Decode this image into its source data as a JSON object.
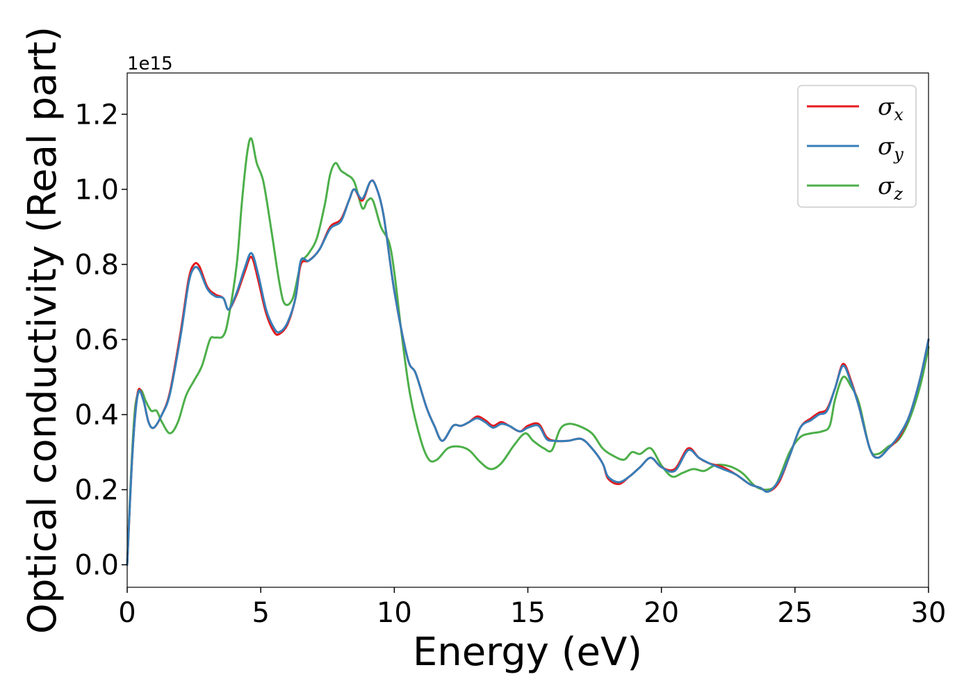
{
  "chart_data": {
    "type": "line",
    "xlabel": "Energy (eV)",
    "ylabel": "Optical conductivity (Real part)",
    "y_offset_label": "1e15",
    "xlim": [
      0,
      30
    ],
    "ylim": [
      -0.06,
      1.31
    ],
    "x_ticks": [
      0,
      5,
      10,
      15,
      20,
      25,
      30
    ],
    "x_tick_labels": [
      "0",
      "5",
      "10",
      "15",
      "20",
      "25",
      "30"
    ],
    "y_ticks": [
      0.0,
      0.2,
      0.4,
      0.6,
      0.8,
      1.0,
      1.2
    ],
    "y_tick_labels": [
      "0.0",
      "0.2",
      "0.4",
      "0.6",
      "0.8",
      "1.0",
      "1.2"
    ],
    "grid": false,
    "legend_position": "top-right",
    "series": [
      {
        "name": "σ_x",
        "legend_symbol": "σ",
        "legend_subscript": "x",
        "color": "#e41a1c",
        "points": [
          [
            0,
            0.0
          ],
          [
            0.2,
            0.3
          ],
          [
            0.4,
            0.46
          ],
          [
            0.6,
            0.44
          ],
          [
            0.8,
            0.38
          ],
          [
            1.0,
            0.365
          ],
          [
            1.3,
            0.4
          ],
          [
            1.6,
            0.46
          ],
          [
            2.0,
            0.62
          ],
          [
            2.3,
            0.76
          ],
          [
            2.5,
            0.8
          ],
          [
            2.7,
            0.795
          ],
          [
            3.0,
            0.74
          ],
          [
            3.3,
            0.72
          ],
          [
            3.6,
            0.71
          ],
          [
            3.8,
            0.68
          ],
          [
            4.1,
            0.72
          ],
          [
            4.4,
            0.78
          ],
          [
            4.65,
            0.82
          ],
          [
            4.9,
            0.76
          ],
          [
            5.2,
            0.67
          ],
          [
            5.5,
            0.62
          ],
          [
            5.7,
            0.615
          ],
          [
            6.0,
            0.64
          ],
          [
            6.3,
            0.71
          ],
          [
            6.5,
            0.8
          ],
          [
            6.8,
            0.81
          ],
          [
            7.2,
            0.84
          ],
          [
            7.6,
            0.9
          ],
          [
            8.0,
            0.92
          ],
          [
            8.3,
            0.97
          ],
          [
            8.5,
            1.0
          ],
          [
            8.8,
            0.97
          ],
          [
            9.1,
            1.02
          ],
          [
            9.3,
            1.01
          ],
          [
            9.6,
            0.93
          ],
          [
            10.0,
            0.73
          ],
          [
            10.5,
            0.55
          ],
          [
            10.8,
            0.51
          ],
          [
            11.2,
            0.42
          ],
          [
            11.5,
            0.37
          ],
          [
            11.8,
            0.33
          ],
          [
            12.2,
            0.37
          ],
          [
            12.5,
            0.37
          ],
          [
            12.8,
            0.38
          ],
          [
            13.1,
            0.395
          ],
          [
            13.4,
            0.385
          ],
          [
            13.7,
            0.37
          ],
          [
            14.0,
            0.38
          ],
          [
            14.3,
            0.37
          ],
          [
            14.7,
            0.355
          ],
          [
            15.0,
            0.37
          ],
          [
            15.4,
            0.375
          ],
          [
            15.7,
            0.34
          ],
          [
            16.0,
            0.33
          ],
          [
            16.5,
            0.33
          ],
          [
            17.0,
            0.335
          ],
          [
            17.4,
            0.31
          ],
          [
            17.8,
            0.27
          ],
          [
            18.0,
            0.23
          ],
          [
            18.4,
            0.215
          ],
          [
            18.8,
            0.235
          ],
          [
            19.2,
            0.26
          ],
          [
            19.6,
            0.285
          ],
          [
            20.0,
            0.26
          ],
          [
            20.5,
            0.255
          ],
          [
            21.0,
            0.31
          ],
          [
            21.4,
            0.285
          ],
          [
            21.8,
            0.27
          ],
          [
            22.3,
            0.26
          ],
          [
            22.8,
            0.24
          ],
          [
            23.3,
            0.215
          ],
          [
            23.7,
            0.205
          ],
          [
            24.0,
            0.195
          ],
          [
            24.4,
            0.22
          ],
          [
            24.8,
            0.29
          ],
          [
            25.2,
            0.365
          ],
          [
            25.6,
            0.39
          ],
          [
            25.9,
            0.405
          ],
          [
            26.2,
            0.415
          ],
          [
            26.5,
            0.47
          ],
          [
            26.8,
            0.535
          ],
          [
            27.1,
            0.49
          ],
          [
            27.4,
            0.42
          ],
          [
            27.8,
            0.31
          ],
          [
            28.1,
            0.285
          ],
          [
            28.5,
            0.31
          ],
          [
            28.9,
            0.34
          ],
          [
            29.3,
            0.4
          ],
          [
            29.7,
            0.5
          ],
          [
            30.0,
            0.6
          ]
        ]
      },
      {
        "name": "σ_y",
        "legend_symbol": "σ",
        "legend_subscript": "y",
        "color": "#377eb8",
        "points": [
          [
            0,
            0.0
          ],
          [
            0.2,
            0.3
          ],
          [
            0.4,
            0.455
          ],
          [
            0.6,
            0.44
          ],
          [
            0.8,
            0.38
          ],
          [
            1.0,
            0.365
          ],
          [
            1.3,
            0.4
          ],
          [
            1.6,
            0.455
          ],
          [
            2.0,
            0.61
          ],
          [
            2.3,
            0.75
          ],
          [
            2.5,
            0.79
          ],
          [
            2.7,
            0.785
          ],
          [
            3.0,
            0.735
          ],
          [
            3.3,
            0.715
          ],
          [
            3.6,
            0.71
          ],
          [
            3.8,
            0.68
          ],
          [
            4.1,
            0.725
          ],
          [
            4.4,
            0.79
          ],
          [
            4.65,
            0.83
          ],
          [
            4.9,
            0.775
          ],
          [
            5.2,
            0.68
          ],
          [
            5.5,
            0.63
          ],
          [
            5.7,
            0.62
          ],
          [
            6.0,
            0.645
          ],
          [
            6.3,
            0.71
          ],
          [
            6.5,
            0.81
          ],
          [
            6.8,
            0.81
          ],
          [
            7.2,
            0.84
          ],
          [
            7.6,
            0.895
          ],
          [
            8.0,
            0.915
          ],
          [
            8.3,
            0.97
          ],
          [
            8.5,
            1.0
          ],
          [
            8.8,
            0.975
          ],
          [
            9.1,
            1.02
          ],
          [
            9.3,
            1.01
          ],
          [
            9.6,
            0.93
          ],
          [
            10.0,
            0.73
          ],
          [
            10.5,
            0.55
          ],
          [
            10.8,
            0.51
          ],
          [
            11.2,
            0.42
          ],
          [
            11.5,
            0.37
          ],
          [
            11.8,
            0.33
          ],
          [
            12.2,
            0.37
          ],
          [
            12.5,
            0.37
          ],
          [
            12.8,
            0.38
          ],
          [
            13.1,
            0.39
          ],
          [
            13.4,
            0.38
          ],
          [
            13.7,
            0.365
          ],
          [
            14.0,
            0.375
          ],
          [
            14.3,
            0.37
          ],
          [
            14.7,
            0.355
          ],
          [
            15.0,
            0.365
          ],
          [
            15.4,
            0.37
          ],
          [
            15.7,
            0.335
          ],
          [
            16.0,
            0.33
          ],
          [
            16.5,
            0.33
          ],
          [
            17.0,
            0.335
          ],
          [
            17.4,
            0.31
          ],
          [
            17.8,
            0.27
          ],
          [
            18.0,
            0.235
          ],
          [
            18.4,
            0.22
          ],
          [
            18.8,
            0.235
          ],
          [
            19.2,
            0.26
          ],
          [
            19.6,
            0.285
          ],
          [
            20.0,
            0.26
          ],
          [
            20.5,
            0.25
          ],
          [
            21.0,
            0.305
          ],
          [
            21.4,
            0.285
          ],
          [
            21.8,
            0.27
          ],
          [
            22.3,
            0.255
          ],
          [
            22.8,
            0.24
          ],
          [
            23.3,
            0.215
          ],
          [
            23.7,
            0.205
          ],
          [
            24.0,
            0.195
          ],
          [
            24.4,
            0.225
          ],
          [
            24.8,
            0.29
          ],
          [
            25.2,
            0.365
          ],
          [
            25.6,
            0.385
          ],
          [
            25.9,
            0.4
          ],
          [
            26.2,
            0.41
          ],
          [
            26.5,
            0.47
          ],
          [
            26.8,
            0.53
          ],
          [
            27.1,
            0.485
          ],
          [
            27.4,
            0.42
          ],
          [
            27.8,
            0.31
          ],
          [
            28.1,
            0.285
          ],
          [
            28.5,
            0.31
          ],
          [
            28.9,
            0.345
          ],
          [
            29.3,
            0.4
          ],
          [
            29.7,
            0.5
          ],
          [
            30.0,
            0.6
          ]
        ]
      },
      {
        "name": "σ_z",
        "legend_symbol": "σ",
        "legend_subscript": "z",
        "color": "#4daf4a",
        "points": [
          [
            0,
            0.0
          ],
          [
            0.15,
            0.25
          ],
          [
            0.3,
            0.42
          ],
          [
            0.5,
            0.465
          ],
          [
            0.7,
            0.435
          ],
          [
            0.9,
            0.41
          ],
          [
            1.1,
            0.41
          ],
          [
            1.3,
            0.38
          ],
          [
            1.6,
            0.35
          ],
          [
            1.9,
            0.38
          ],
          [
            2.2,
            0.45
          ],
          [
            2.5,
            0.49
          ],
          [
            2.8,
            0.53
          ],
          [
            3.1,
            0.6
          ],
          [
            3.3,
            0.605
          ],
          [
            3.6,
            0.61
          ],
          [
            3.8,
            0.66
          ],
          [
            4.1,
            0.8
          ],
          [
            4.3,
            0.97
          ],
          [
            4.5,
            1.1
          ],
          [
            4.65,
            1.135
          ],
          [
            4.85,
            1.07
          ],
          [
            5.1,
            1.02
          ],
          [
            5.4,
            0.89
          ],
          [
            5.7,
            0.75
          ],
          [
            5.9,
            0.695
          ],
          [
            6.2,
            0.71
          ],
          [
            6.5,
            0.8
          ],
          [
            6.8,
            0.83
          ],
          [
            7.1,
            0.87
          ],
          [
            7.4,
            0.96
          ],
          [
            7.6,
            1.04
          ],
          [
            7.8,
            1.07
          ],
          [
            8.0,
            1.05
          ],
          [
            8.2,
            1.04
          ],
          [
            8.5,
            1.02
          ],
          [
            8.8,
            0.95
          ],
          [
            9.0,
            0.97
          ],
          [
            9.2,
            0.97
          ],
          [
            9.5,
            0.9
          ],
          [
            9.8,
            0.86
          ],
          [
            10.0,
            0.78
          ],
          [
            10.3,
            0.6
          ],
          [
            10.6,
            0.45
          ],
          [
            11.0,
            0.33
          ],
          [
            11.3,
            0.28
          ],
          [
            11.6,
            0.28
          ],
          [
            12.0,
            0.31
          ],
          [
            12.4,
            0.315
          ],
          [
            12.8,
            0.305
          ],
          [
            13.2,
            0.275
          ],
          [
            13.6,
            0.255
          ],
          [
            14.0,
            0.27
          ],
          [
            14.5,
            0.32
          ],
          [
            14.9,
            0.35
          ],
          [
            15.2,
            0.33
          ],
          [
            15.6,
            0.31
          ],
          [
            15.9,
            0.305
          ],
          [
            16.2,
            0.36
          ],
          [
            16.5,
            0.375
          ],
          [
            16.9,
            0.37
          ],
          [
            17.4,
            0.35
          ],
          [
            17.8,
            0.31
          ],
          [
            18.2,
            0.29
          ],
          [
            18.6,
            0.28
          ],
          [
            18.9,
            0.3
          ],
          [
            19.2,
            0.295
          ],
          [
            19.6,
            0.31
          ],
          [
            20.0,
            0.265
          ],
          [
            20.4,
            0.235
          ],
          [
            20.8,
            0.245
          ],
          [
            21.2,
            0.255
          ],
          [
            21.6,
            0.25
          ],
          [
            22.0,
            0.265
          ],
          [
            22.4,
            0.265
          ],
          [
            22.8,
            0.255
          ],
          [
            23.1,
            0.24
          ],
          [
            23.5,
            0.21
          ],
          [
            23.9,
            0.2
          ],
          [
            24.3,
            0.215
          ],
          [
            24.8,
            0.3
          ],
          [
            25.2,
            0.34
          ],
          [
            25.6,
            0.35
          ],
          [
            26.0,
            0.355
          ],
          [
            26.3,
            0.37
          ],
          [
            26.5,
            0.44
          ],
          [
            26.8,
            0.5
          ],
          [
            27.1,
            0.475
          ],
          [
            27.4,
            0.43
          ],
          [
            27.8,
            0.31
          ],
          [
            28.1,
            0.295
          ],
          [
            28.5,
            0.315
          ],
          [
            28.9,
            0.335
          ],
          [
            29.3,
            0.39
          ],
          [
            29.7,
            0.48
          ],
          [
            30.0,
            0.58
          ]
        ]
      }
    ]
  }
}
